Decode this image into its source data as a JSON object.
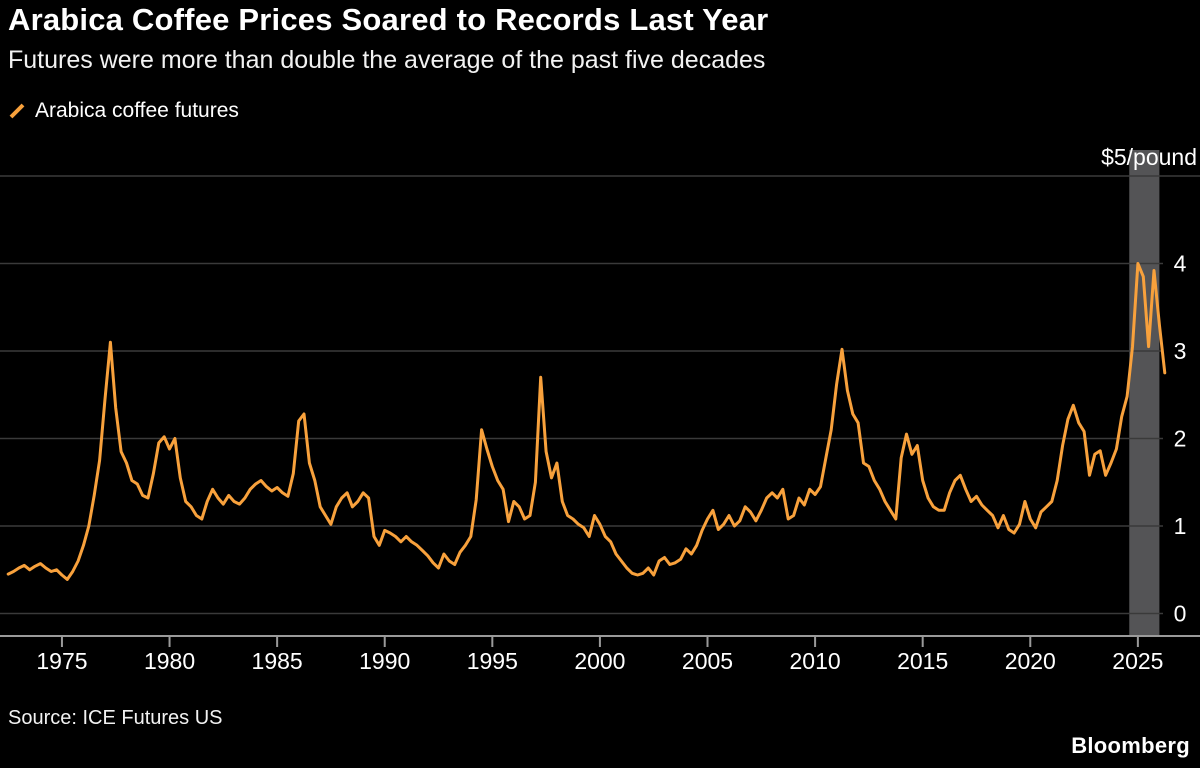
{
  "header": {
    "title": "Arabica Coffee Prices Soared to Records Last Year",
    "subtitle": "Futures were more than double the average of the past five decades"
  },
  "legend": {
    "label": "Arabica coffee futures"
  },
  "footer": {
    "source": "Source: ICE Futures US",
    "brand": "Bloomberg"
  },
  "colors": {
    "background": "#000000",
    "accent": "#F8A13C",
    "grid": "#3a3a3a",
    "axis": "#9a9a9a",
    "band": "#545456",
    "text": "#ffffff"
  },
  "chart_data": {
    "type": "line",
    "title": "Arabica Coffee Prices Soared to Records Last Year",
    "subtitle": "Futures were more than double the average of the past five decades",
    "xlabel": "",
    "ylabel": "$/pound",
    "y_axis_top_label": "$5/pound",
    "y_ticks": [
      0,
      1,
      2,
      3,
      4
    ],
    "x_ticks": [
      1975,
      1980,
      1985,
      1990,
      1995,
      2000,
      2005,
      2010,
      2015,
      2020,
      2025
    ],
    "ylim": [
      0,
      5
    ],
    "xlim": [
      1972.4,
      2026.4
    ],
    "grid": true,
    "legend_position": "top-left",
    "highlight_band": {
      "x_start": 2024.6,
      "x_end": 2026.0
    },
    "series": [
      {
        "name": "Arabica coffee futures",
        "x_start": 1972.5,
        "x_step": 0.25,
        "values": [
          0.45,
          0.48,
          0.52,
          0.55,
          0.5,
          0.54,
          0.57,
          0.52,
          0.48,
          0.5,
          0.44,
          0.39,
          0.48,
          0.6,
          0.78,
          1.0,
          1.35,
          1.75,
          2.45,
          3.1,
          2.35,
          1.85,
          1.72,
          1.52,
          1.48,
          1.35,
          1.32,
          1.6,
          1.95,
          2.02,
          1.88,
          2.0,
          1.55,
          1.28,
          1.22,
          1.12,
          1.08,
          1.28,
          1.42,
          1.32,
          1.25,
          1.35,
          1.28,
          1.25,
          1.32,
          1.42,
          1.48,
          1.52,
          1.45,
          1.4,
          1.44,
          1.38,
          1.34,
          1.6,
          2.2,
          2.28,
          1.72,
          1.52,
          1.22,
          1.12,
          1.02,
          1.22,
          1.32,
          1.38,
          1.22,
          1.28,
          1.38,
          1.32,
          0.88,
          0.78,
          0.95,
          0.92,
          0.88,
          0.82,
          0.88,
          0.82,
          0.78,
          0.72,
          0.66,
          0.58,
          0.52,
          0.68,
          0.6,
          0.56,
          0.7,
          0.78,
          0.88,
          1.3,
          2.1,
          1.88,
          1.68,
          1.52,
          1.42,
          1.05,
          1.28,
          1.22,
          1.08,
          1.12,
          1.5,
          2.7,
          1.85,
          1.55,
          1.72,
          1.28,
          1.12,
          1.08,
          1.02,
          0.98,
          0.88,
          1.12,
          1.02,
          0.88,
          0.82,
          0.68,
          0.6,
          0.52,
          0.46,
          0.44,
          0.46,
          0.52,
          0.44,
          0.6,
          0.64,
          0.56,
          0.58,
          0.62,
          0.74,
          0.68,
          0.78,
          0.95,
          1.08,
          1.18,
          0.96,
          1.02,
          1.12,
          1.0,
          1.06,
          1.22,
          1.16,
          1.06,
          1.18,
          1.32,
          1.38,
          1.32,
          1.42,
          1.08,
          1.12,
          1.32,
          1.24,
          1.42,
          1.36,
          1.45,
          1.78,
          2.1,
          2.62,
          3.02,
          2.55,
          2.28,
          2.18,
          1.72,
          1.68,
          1.52,
          1.42,
          1.28,
          1.18,
          1.08,
          1.78,
          2.05,
          1.82,
          1.92,
          1.52,
          1.32,
          1.22,
          1.18,
          1.18,
          1.38,
          1.52,
          1.58,
          1.42,
          1.28,
          1.34,
          1.24,
          1.18,
          1.12,
          0.98,
          1.12,
          0.96,
          0.92,
          1.02,
          1.28,
          1.08,
          0.98,
          1.16,
          1.22,
          1.28,
          1.52,
          1.92,
          2.22,
          2.38,
          2.18,
          2.08,
          1.58,
          1.82,
          1.86,
          1.58,
          1.72,
          1.88,
          2.25,
          2.48,
          3.05,
          4.0,
          3.85,
          3.05,
          3.92,
          3.3,
          2.75
        ]
      }
    ]
  }
}
